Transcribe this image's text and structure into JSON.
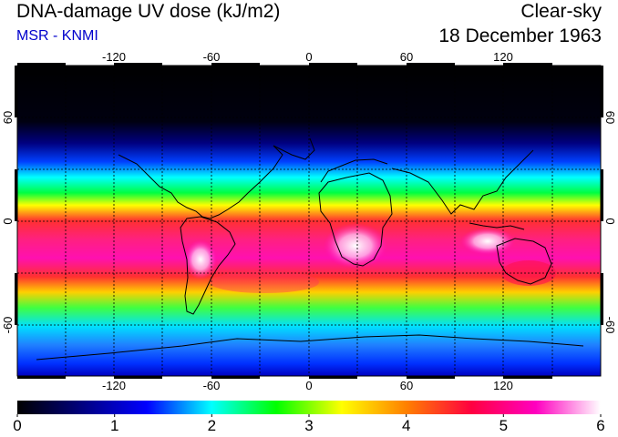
{
  "header": {
    "title": "DNA-damage UV dose (kJ/m2)",
    "source": "MSR - KNMI",
    "mode": "Clear-sky",
    "date": "18 December 1963"
  },
  "map": {
    "lon_ticks": [
      "-120",
      "-60",
      "0",
      "60",
      "120"
    ],
    "lat_ticks": [
      "60",
      "0",
      "-60"
    ]
  },
  "colorbar": {
    "labels": [
      "0",
      "1",
      "2",
      "3",
      "4",
      "5",
      "6"
    ],
    "colors": [
      "#000000",
      "#000080",
      "#0000ff",
      "#00ffff",
      "#00ff00",
      "#ffff00",
      "#ff8000",
      "#ff0040",
      "#ff00c0",
      "#ffffff"
    ]
  }
}
